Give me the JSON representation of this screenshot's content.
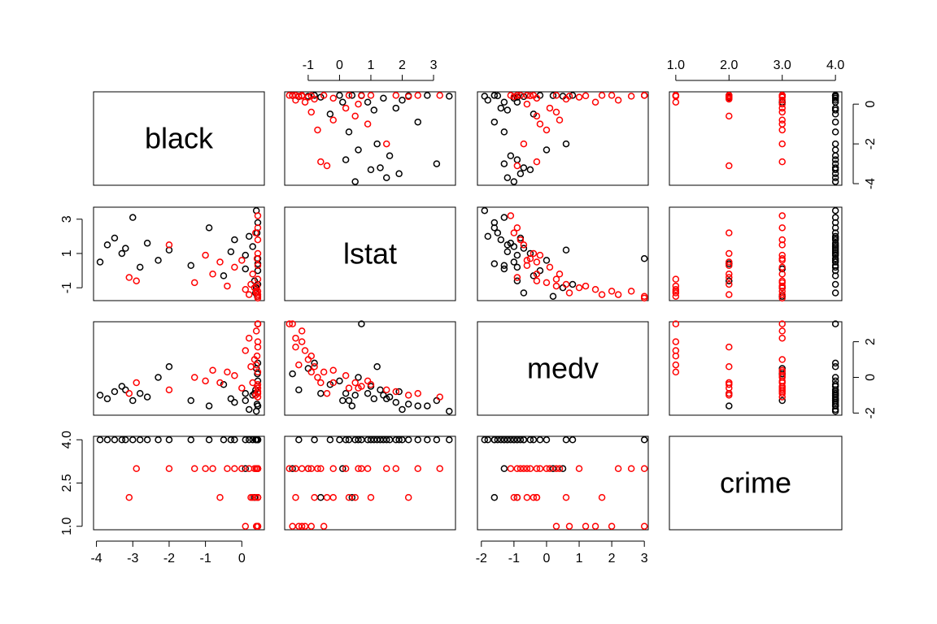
{
  "chart_data": {
    "type": "scatter-matrix",
    "variables": [
      {
        "name": "black",
        "lim": [
          -4.08,
          0.62
        ],
        "xticks": [
          -4,
          -3,
          -2,
          -1,
          0
        ],
        "yticks": [
          -4,
          -2,
          0
        ]
      },
      {
        "name": "lstat",
        "lim": [
          -1.75,
          3.7
        ],
        "xticks": [
          -1,
          0,
          1,
          2,
          3
        ],
        "yticks": [
          -1,
          1,
          3
        ]
      },
      {
        "name": "medv",
        "lim": [
          -2.12,
          3.12
        ],
        "xticks": [
          -2,
          -1,
          0,
          1,
          2,
          3
        ],
        "yticks": [
          -2,
          0,
          2
        ]
      },
      {
        "name": "crime",
        "lim": [
          0.88,
          4.12
        ],
        "xticks": [
          {
            "value": 1,
            "label": "1.0"
          },
          {
            "value": 2,
            "label": "2.0"
          },
          {
            "value": 3,
            "label": "3.0"
          },
          {
            "value": 4,
            "label": "4.0"
          }
        ],
        "yticks": [
          {
            "value": 1,
            "label": "1.0"
          },
          {
            "value": 2.5,
            "label": "2.5"
          },
          {
            "value": 4,
            "label": "4.0"
          }
        ]
      }
    ],
    "series": [
      {
        "color": "#000000",
        "values": [
          [
            0.4,
            0.44,
            -3.9,
            -3.7,
            -3.5,
            -3.3,
            -3.0,
            -2.8,
            -2.6,
            -2.3,
            -2.0,
            -1.4,
            -0.9,
            -0.5,
            -0.2,
            0.1,
            0.3,
            0.42,
            0.44,
            0.44,
            0.38,
            0.44,
            0.2,
            -0.3,
            0.43,
            0.4,
            0.44,
            0.35,
            0.1,
            -3.2
          ],
          [
            3.5,
            2.8,
            0.5,
            1.5,
            1.9,
            1.0,
            3.1,
            0.2,
            1.6,
            0.6,
            1.2,
            0.3,
            2.5,
            -0.3,
            1.8,
            0.9,
            1.4,
            2.2,
            0.7,
            -0.8,
            -1.3,
            0.0,
            2.0,
            1.1,
            -1.5,
            -1.0,
            0.4,
            -0.6,
            0.1,
            1.3
          ],
          [
            -1.9,
            -1.6,
            -1.0,
            -1.2,
            -0.8,
            -0.5,
            -1.3,
            -0.9,
            -1.1,
            0.0,
            0.6,
            -1.3,
            -1.6,
            -0.4,
            -1.4,
            -0.9,
            -1.0,
            -1.5,
            3.0,
            0.8,
            -0.7,
            -0.2,
            -1.8,
            -1.2,
            0.2,
            0.5,
            -1.6,
            -0.9,
            -1.3,
            -0.7
          ],
          [
            4,
            4,
            4,
            4,
            4,
            4,
            4,
            4,
            4,
            4,
            4,
            4,
            4,
            4,
            4,
            4,
            4,
            4,
            4,
            4,
            4,
            4,
            4,
            4,
            3,
            3,
            2,
            2,
            3,
            4
          ]
        ]
      },
      {
        "color": "#ff0000",
        "values": [
          [
            0.44,
            0.44,
            0.42,
            0.4,
            0.44,
            0.1,
            0.3,
            0.44,
            0.44,
            0.38,
            0.25,
            0.44,
            -3.1,
            -0.6,
            0.44,
            0.44,
            0.42,
            -0.2,
            -0.8,
            -1.3,
            -2.0,
            -2.9,
            0.44,
            0.4,
            0.35,
            0.0,
            -0.4,
            0.44,
            -1.0,
            0.2
          ],
          [
            -1.5,
            -1.2,
            -0.9,
            -1.3,
            -0.5,
            -1.1,
            -0.2,
            0.3,
            1.0,
            2.2,
            -0.8,
            -1.4,
            -0.4,
            0.5,
            1.8,
            3.2,
            0.7,
            0.2,
            -0.2,
            -0.7,
            1.5,
            -0.6,
            -1.6,
            -1.2,
            -1.0,
            0.6,
            -0.9,
            2.5,
            0.9,
            -1.4
          ],
          [
            3.0,
            2.0,
            1.2,
            0.7,
            0.3,
            1.5,
            -0.3,
            -0.6,
            -0.4,
            -1.0,
            0.6,
            1.7,
            -0.9,
            -0.3,
            -0.8,
            -1.1,
            -0.5,
            0.1,
            0.4,
            0.0,
            -0.7,
            -0.3,
            3.0,
            2.6,
            1.0,
            -0.6,
            0.3,
            -0.9,
            -0.2,
            2.2
          ],
          [
            1,
            1,
            1,
            1,
            1,
            1,
            2,
            2,
            2,
            2,
            2,
            2,
            2,
            2,
            3,
            3,
            3,
            3,
            3,
            3,
            3,
            3,
            3,
            3,
            3,
            3,
            3,
            3,
            3,
            3
          ]
        ]
      }
    ]
  }
}
